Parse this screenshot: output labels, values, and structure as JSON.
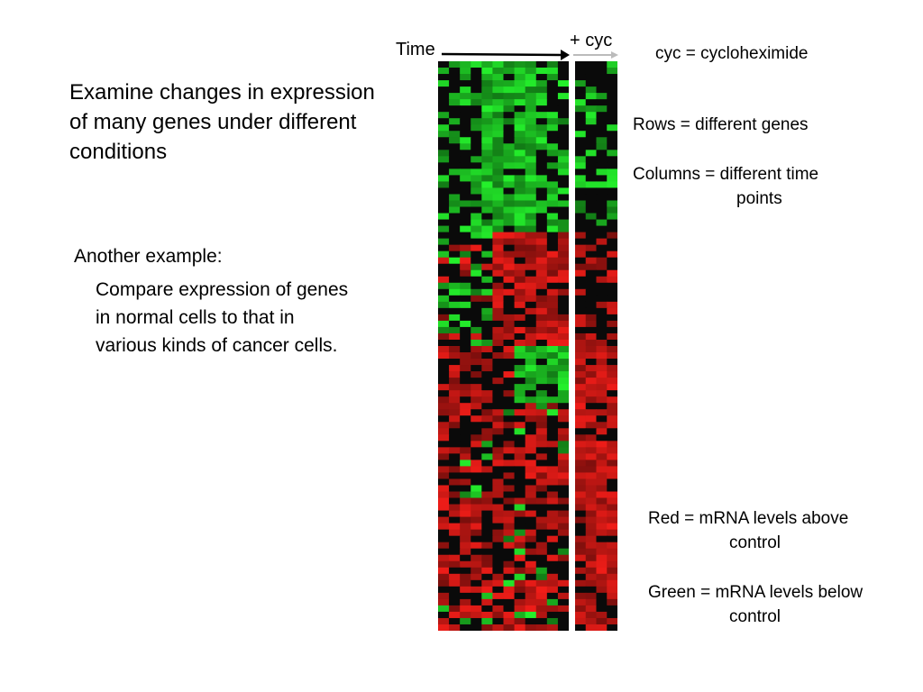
{
  "slide": {
    "main_text": [
      "Examine changes in expression",
      "of many genes under different",
      "conditions"
    ],
    "another_label": "Another example:",
    "compare_text": [
      "Compare expression of genes",
      "in normal cells to that in",
      "various kinds of cancer cells."
    ],
    "cyc_note": "cyc = cycloheximide",
    "rows_note": "Rows = different genes",
    "columns_note": [
      "Columns = different time",
      "points"
    ],
    "red_note": [
      "Red = mRNA levels above",
      "control"
    ],
    "green_note": [
      "Green = mRNA levels below",
      "control"
    ]
  },
  "figure": {
    "time_label": "Time",
    "cyc_label": "+ cyc",
    "colors": {
      "red": "#e8201e",
      "green": "#22c02a",
      "black": "#0a0a0a"
    }
  }
}
